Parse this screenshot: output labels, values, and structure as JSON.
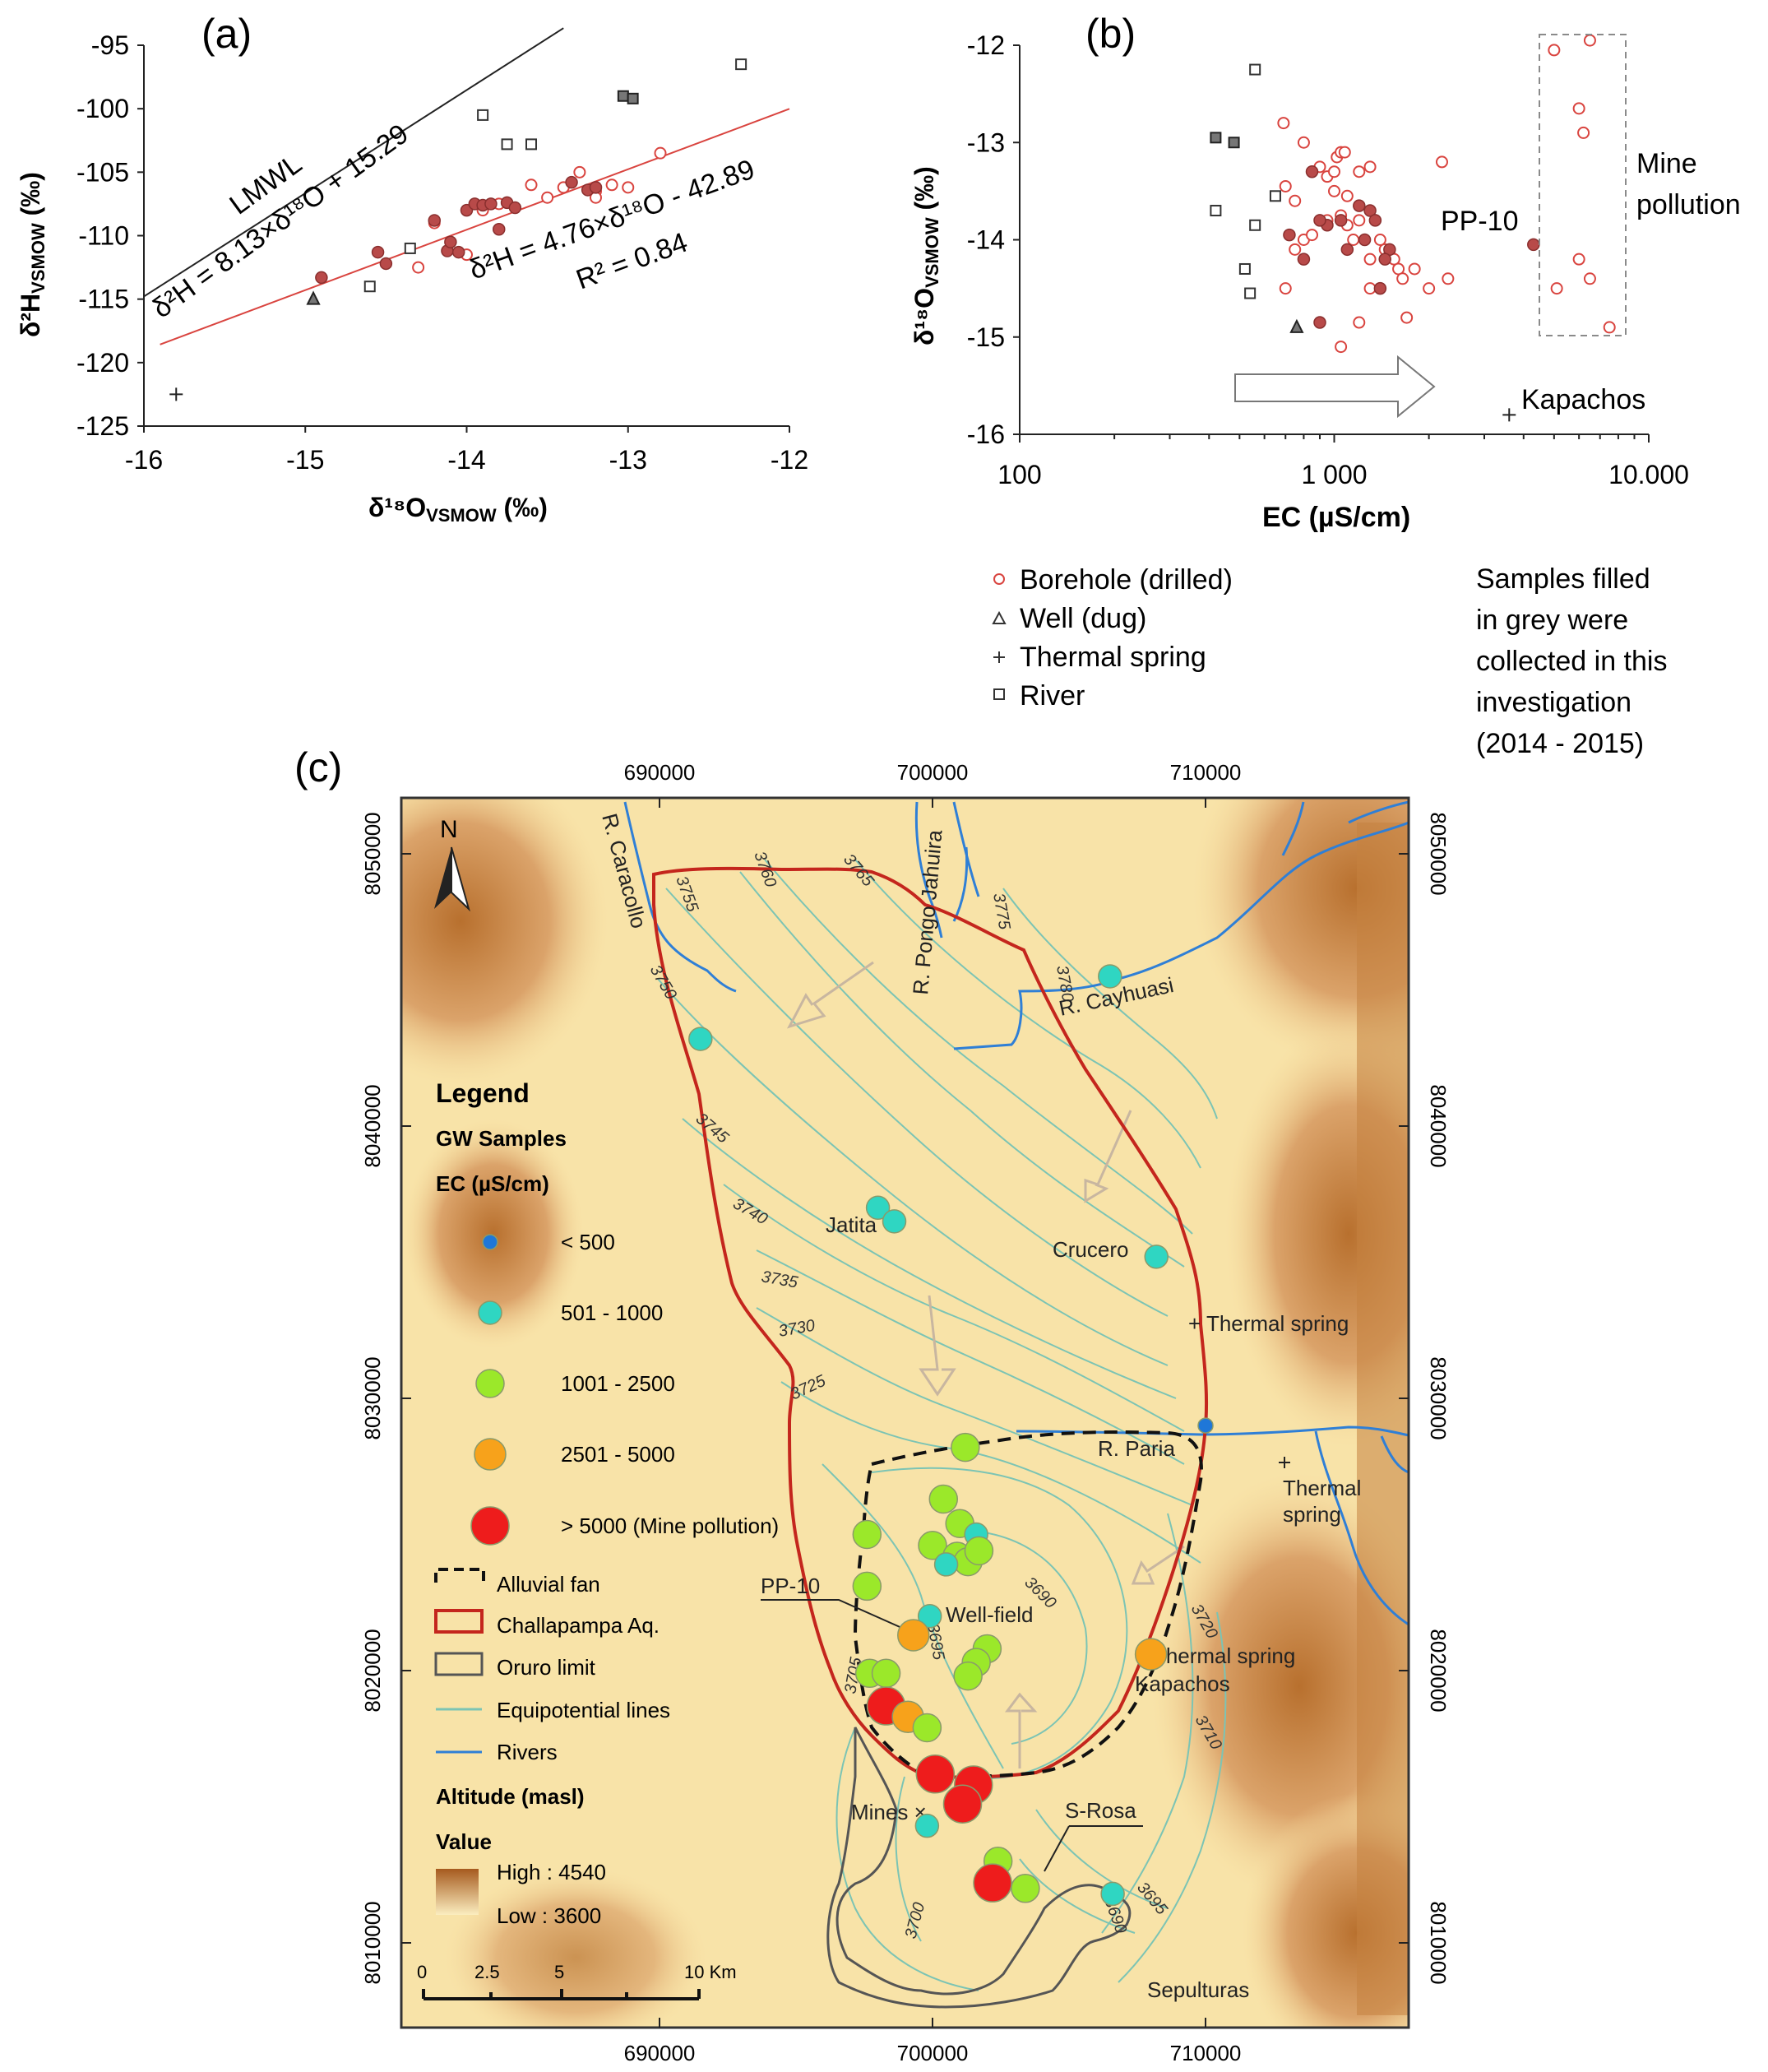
{
  "chart_data": [
    {
      "panel": "(a)",
      "type": "scatter",
      "xlabel_main": "δ¹⁸O",
      "xlabel_sub": "VSMOW",
      "xlabel_unit": " (‰)",
      "ylabel_main": "δ²H",
      "ylabel_sub": "VSMOW",
      "ylabel_unit": " (‰)",
      "xlim": [
        -16,
        -12
      ],
      "ylim": [
        -125,
        -95
      ],
      "xticks": [
        "-16",
        "-15",
        "-14",
        "-13",
        "-12"
      ],
      "yticks": [
        "-95",
        "-100",
        "-105",
        "-110",
        "-115",
        "-120",
        "-125"
      ],
      "lines": [
        {
          "name": "LMWL",
          "slope": 8.13,
          "intercept": 15.29,
          "color": "#222222",
          "xrange": [
            -16,
            -13.4
          ]
        },
        {
          "name": "regression",
          "slope": 4.76,
          "intercept": -42.89,
          "color": "#d9443f",
          "xrange": [
            -15.9,
            -12
          ]
        }
      ],
      "annotations": {
        "lmwl_label": "LMWL",
        "lmwl_equation": "δ²H = 8.13×δ¹⁸O + 15.29",
        "reg_equation": "δ²H = 4.76×δ¹⁸O - 42.89",
        "r2": "R² = 0.84"
      },
      "series": [
        {
          "name": "Borehole (drilled)",
          "marker": "circle-open",
          "points": [
            [
              -14.3,
              -112.5
            ],
            [
              -14.2,
              -109
            ],
            [
              -14.0,
              -111.5
            ],
            [
              -13.9,
              -108
            ],
            [
              -13.8,
              -107.5
            ],
            [
              -13.6,
              -106
            ],
            [
              -13.5,
              -107
            ],
            [
              -13.3,
              -105
            ],
            [
              -13.2,
              -106.5
            ],
            [
              -13.1,
              -106
            ],
            [
              -13.0,
              -106.2
            ],
            [
              -12.8,
              -103.5
            ],
            [
              -13.4,
              -106.2
            ],
            [
              -13.2,
              -107
            ]
          ]
        },
        {
          "name": "Borehole (drilled) - this investigation",
          "marker": "circle-filled",
          "points": [
            [
              -14.9,
              -113.3
            ],
            [
              -14.55,
              -111.3
            ],
            [
              -14.5,
              -112.2
            ],
            [
              -14.2,
              -108.8
            ],
            [
              -14.12,
              -111.2
            ],
            [
              -14.1,
              -110.5
            ],
            [
              -14.05,
              -111.3
            ],
            [
              -14.0,
              -108
            ],
            [
              -13.95,
              -107.5
            ],
            [
              -13.9,
              -107.6
            ],
            [
              -13.85,
              -107.5
            ],
            [
              -13.8,
              -109.5
            ],
            [
              -13.75,
              -107.4
            ],
            [
              -13.7,
              -107.8
            ],
            [
              -13.35,
              -105.8
            ],
            [
              -13.25,
              -106.4
            ],
            [
              -13.2,
              -106.2
            ]
          ]
        },
        {
          "name": "Well (dug)",
          "marker": "triangle-filled",
          "points": [
            [
              -14.95,
              -115
            ]
          ]
        },
        {
          "name": "Thermal spring",
          "marker": "plus",
          "points": [
            [
              -15.8,
              -122.5
            ]
          ]
        },
        {
          "name": "River",
          "marker": "square-open",
          "points": [
            [
              -14.6,
              -114
            ],
            [
              -14.35,
              -111
            ],
            [
              -13.9,
              -100.5
            ],
            [
              -13.75,
              -102.8
            ],
            [
              -13.6,
              -102.8
            ],
            [
              -12.3,
              -96.5
            ]
          ]
        },
        {
          "name": "River - this investigation",
          "marker": "square-filled",
          "points": [
            [
              -13.03,
              -99
            ],
            [
              -12.97,
              -99.2
            ]
          ]
        }
      ]
    },
    {
      "panel": "(b)",
      "type": "scatter",
      "xlabel": "EC (µS/cm)",
      "ylabel_main": "δ¹⁸O",
      "ylabel_sub": "VSMOW",
      "ylabel_unit": " (‰)",
      "xscale": "log",
      "xlim": [
        100,
        10000
      ],
      "ylim": [
        -16,
        -12
      ],
      "xticks": [
        "100",
        "1 000",
        "10.000"
      ],
      "yticks": [
        "-12",
        "-13",
        "-14",
        "-15",
        "-16"
      ],
      "annotations": {
        "pp10": "PP-10",
        "mine_line1": "Mine",
        "mine_line2": "pollution",
        "kapachos": "Kapachos"
      },
      "series": [
        {
          "name": "Borehole (drilled)",
          "marker": "circle-open",
          "points": [
            [
              690,
              -12.8
            ],
            [
              800,
              -13.0
            ],
            [
              700,
              -13.45
            ],
            [
              750,
              -13.6
            ],
            [
              850,
              -13.3
            ],
            [
              900,
              -13.25
            ],
            [
              950,
              -13.35
            ],
            [
              1000,
              -13.3
            ],
            [
              1020,
              -13.15
            ],
            [
              1050,
              -13.1
            ],
            [
              1080,
              -13.1
            ],
            [
              1000,
              -13.5
            ],
            [
              1100,
              -13.55
            ],
            [
              1200,
              -13.3
            ],
            [
              1300,
              -13.25
            ],
            [
              2200,
              -13.2
            ],
            [
              750,
              -14.1
            ],
            [
              800,
              -14.0
            ],
            [
              850,
              -13.95
            ],
            [
              950,
              -13.8
            ],
            [
              1050,
              -13.75
            ],
            [
              1100,
              -13.85
            ],
            [
              1150,
              -14.0
            ],
            [
              1200,
              -13.8
            ],
            [
              1300,
              -14.2
            ],
            [
              1400,
              -14.0
            ],
            [
              1450,
              -14.1
            ],
            [
              1500,
              -14.15
            ],
            [
              1550,
              -14.2
            ],
            [
              1600,
              -14.3
            ],
            [
              1650,
              -14.4
            ],
            [
              1800,
              -14.3
            ],
            [
              2000,
              -14.5
            ],
            [
              700,
              -14.5
            ],
            [
              1300,
              -14.5
            ],
            [
              1400,
              -14.5
            ],
            [
              1200,
              -14.85
            ],
            [
              1050,
              -15.1
            ],
            [
              1700,
              -14.8
            ],
            [
              2300,
              -14.4
            ],
            [
              5000,
              -12.05
            ],
            [
              6000,
              -12.65
            ],
            [
              6200,
              -12.9
            ],
            [
              6500,
              -11.95
            ],
            [
              5100,
              -14.5
            ],
            [
              6000,
              -14.2
            ],
            [
              6500,
              -14.4
            ],
            [
              7500,
              -14.9
            ]
          ]
        },
        {
          "name": "Borehole (drilled) - this investigation",
          "marker": "circle-filled",
          "points": [
            [
              850,
              -13.3
            ],
            [
              950,
              -13.85
            ],
            [
              900,
              -13.8
            ],
            [
              800,
              -14.2
            ],
            [
              1050,
              -13.8
            ],
            [
              1100,
              -14.1
            ],
            [
              1250,
              -14.0
            ],
            [
              1300,
              -13.7
            ],
            [
              1350,
              -13.8
            ],
            [
              900,
              -14.85
            ],
            [
              1500,
              -14.1
            ],
            [
              1400,
              -14.5
            ],
            [
              1450,
              -14.2
            ],
            [
              4300,
              -14.05
            ],
            [
              720,
              -13.95
            ],
            [
              1200,
              -13.65
            ]
          ]
        },
        {
          "name": "Well (dug)",
          "marker": "triangle-filled",
          "points": [
            [
              760,
              -14.9
            ]
          ]
        },
        {
          "name": "Thermal spring",
          "marker": "plus",
          "points": [
            [
              3600,
              -15.8
            ]
          ]
        },
        {
          "name": "River",
          "marker": "square-open",
          "points": [
            [
              420,
              -13.7
            ],
            [
              560,
              -12.25
            ],
            [
              650,
              -13.55
            ],
            [
              520,
              -14.3
            ],
            [
              560,
              -13.85
            ],
            [
              540,
              -14.55
            ]
          ]
        },
        {
          "name": "River - this investigation",
          "marker": "square-filled",
          "points": [
            [
              420,
              -12.95
            ],
            [
              480,
              -13.0
            ]
          ]
        }
      ],
      "legend": {
        "items": [
          "Borehole (drilled)",
          "Well (dug)",
          "Thermal spring",
          "River"
        ],
        "note_lines": [
          "Samples filled",
          "in grey were",
          "collected in this",
          "investigation",
          "(2014 - 2015)"
        ]
      }
    },
    {
      "panel": "(c)",
      "type": "map",
      "x_ticks": [
        "690000",
        "700000",
        "710000"
      ],
      "y_ticks": [
        "8050000",
        "8040000",
        "8030000",
        "8020000",
        "8010000"
      ],
      "north": "N",
      "river_labels": [
        "R. Caracollo",
        "R. Pongo Jahuira",
        "R. Cayhuasi",
        "R. Paria"
      ],
      "place_labels": [
        "Jatita",
        "Crucero",
        "+ Thermal spring",
        "Thermal",
        "spring",
        "Well-field",
        "PP-10",
        "+ Thermal spring",
        "Kapachos",
        "Mines ×",
        "S-Rosa",
        "Sepulturas"
      ],
      "contour_labels": [
        "3755",
        "3760",
        "3765",
        "3775",
        "3780",
        "3750",
        "3745",
        "3740",
        "3735",
        "3730",
        "3725",
        "3720",
        "3710",
        "3705",
        "3695",
        "3690",
        "3695",
        "3690",
        "3700",
        "3680"
      ],
      "samples": [
        {
          "e": 706.5,
          "n": 8045.5,
          "ec_class": "501 - 1000"
        },
        {
          "e": 691.5,
          "n": 8043.2,
          "ec_class": "501 - 1000"
        },
        {
          "e": 698.0,
          "n": 8037.0,
          "ec_class": "501 - 1000"
        },
        {
          "e": 698.6,
          "n": 8036.5,
          "ec_class": "501 - 1000"
        },
        {
          "e": 708.2,
          "n": 8035.2,
          "ec_class": "501 - 1000"
        },
        {
          "e": 710.0,
          "n": 8029.0,
          "ec_class": "< 500"
        },
        {
          "e": 701.2,
          "n": 8028.2,
          "ec_class": "1001 - 2500"
        },
        {
          "e": 700.4,
          "n": 8026.3,
          "ec_class": "1001 - 2500"
        },
        {
          "e": 701.0,
          "n": 8025.4,
          "ec_class": "1001 - 2500"
        },
        {
          "e": 701.6,
          "n": 8025.0,
          "ec_class": "501 - 1000"
        },
        {
          "e": 700.0,
          "n": 8024.6,
          "ec_class": "1001 - 2500"
        },
        {
          "e": 700.9,
          "n": 8024.2,
          "ec_class": "1001 - 2500"
        },
        {
          "e": 701.3,
          "n": 8024.0,
          "ec_class": "1001 - 2500"
        },
        {
          "e": 700.5,
          "n": 8023.9,
          "ec_class": "501 - 1000"
        },
        {
          "e": 701.7,
          "n": 8024.4,
          "ec_class": "1001 - 2500"
        },
        {
          "e": 697.6,
          "n": 8025.0,
          "ec_class": "1001 - 2500"
        },
        {
          "e": 697.6,
          "n": 8023.1,
          "ec_class": "1001 - 2500"
        },
        {
          "e": 699.9,
          "n": 8022.0,
          "ec_class": "501 - 1000"
        },
        {
          "e": 699.3,
          "n": 8021.3,
          "ec_class": "2501 - 5000"
        },
        {
          "e": 702.0,
          "n": 8020.8,
          "ec_class": "1001 - 2500"
        },
        {
          "e": 701.6,
          "n": 8020.3,
          "ec_class": "1001 - 2500"
        },
        {
          "e": 701.3,
          "n": 8019.8,
          "ec_class": "1001 - 2500"
        },
        {
          "e": 697.7,
          "n": 8019.9,
          "ec_class": "1001 - 2500"
        },
        {
          "e": 698.3,
          "n": 8019.9,
          "ec_class": "1001 - 2500"
        },
        {
          "e": 708.0,
          "n": 8020.6,
          "ec_class": "2501 - 5000"
        },
        {
          "e": 698.3,
          "n": 8018.7,
          "ec_class": "> 5000 (Mine pollution)"
        },
        {
          "e": 699.1,
          "n": 8018.3,
          "ec_class": "2501 - 5000"
        },
        {
          "e": 699.8,
          "n": 8017.9,
          "ec_class": "1001 - 2500"
        },
        {
          "e": 700.1,
          "n": 8016.2,
          "ec_class": "> 5000 (Mine pollution)"
        },
        {
          "e": 701.5,
          "n": 8015.8,
          "ec_class": "> 5000 (Mine pollution)"
        },
        {
          "e": 701.1,
          "n": 8015.1,
          "ec_class": "> 5000 (Mine pollution)"
        },
        {
          "e": 699.8,
          "n": 8014.3,
          "ec_class": "501 - 1000"
        },
        {
          "e": 702.4,
          "n": 8013.0,
          "ec_class": "1001 - 2500"
        },
        {
          "e": 702.2,
          "n": 8012.2,
          "ec_class": "> 5000 (Mine pollution)"
        },
        {
          "e": 703.4,
          "n": 8012.0,
          "ec_class": "1001 - 2500"
        },
        {
          "e": 706.6,
          "n": 8011.8,
          "ec_class": "501 - 1000"
        }
      ],
      "legend": {
        "title": "Legend",
        "gw": "GW Samples",
        "ec": "EC (µS/cm)",
        "ec_classes": [
          {
            "label": "< 500",
            "color": "#1f77d8"
          },
          {
            "label": "501 - 1000",
            "color": "#2fd6c2"
          },
          {
            "label": "1001 - 2500",
            "color": "#9be82a"
          },
          {
            "label": "2501 - 5000",
            "color": "#f7a21b"
          },
          {
            "label": "> 5000 (Mine pollution)",
            "color": "#ee1c1c"
          }
        ],
        "lines": [
          "Alluvial fan",
          "Challapampa Aq.",
          "Oruro limit",
          "Equipotential lines",
          "Rivers"
        ],
        "altitude_title": "Altitude (masl)",
        "value_title": "Value",
        "high": "High : 4540",
        "low": "Low : 3600",
        "scale": [
          "0",
          "2.5",
          "5",
          "10 Km"
        ]
      }
    }
  ],
  "colors": {
    "red": "#d9443f",
    "filled_grey": "#8c8c8c",
    "contour": "#7cc4b4",
    "river": "#2f7fd6",
    "aquifer": "#c4261d"
  }
}
